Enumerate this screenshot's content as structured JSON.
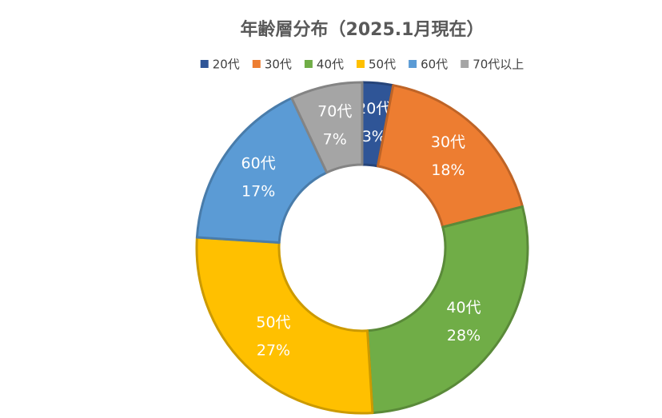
{
  "chart_data": {
    "type": "donut",
    "title": "年齢層分布（2025.1月現在）",
    "categories": [
      "20代",
      "30代",
      "40代",
      "50代",
      "60代",
      "70代以上"
    ],
    "slice_labels": [
      "20代",
      "30代",
      "40代",
      "50代",
      "60代",
      "70代"
    ],
    "values": [
      3,
      18,
      28,
      27,
      17,
      7
    ],
    "value_labels": [
      "3%",
      "18%",
      "28%",
      "27%",
      "17%",
      "7%"
    ],
    "colors": [
      "#2f5597",
      "#ed7d31",
      "#70ad47",
      "#ffc000",
      "#5b9bd5",
      "#a5a5a5"
    ],
    "legend": "top"
  }
}
